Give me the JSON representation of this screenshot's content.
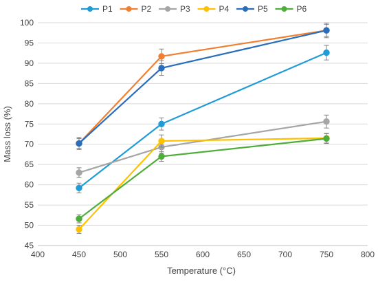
{
  "chart_data": {
    "type": "line",
    "title": "",
    "xlabel": "Temperature (°C)",
    "ylabel": "Mass loss (%)",
    "x": [
      450,
      550,
      750
    ],
    "xlim": [
      400,
      800
    ],
    "ylim": [
      45,
      100
    ],
    "xticks": [
      "400",
      "450",
      "500",
      "550",
      "600",
      "650",
      "700",
      "750",
      "800"
    ],
    "yticks": [
      "45",
      "50",
      "55",
      "60",
      "65",
      "70",
      "75",
      "80",
      "85",
      "90",
      "95",
      "100"
    ],
    "grid": "horizontal",
    "legend_position": "top",
    "error_bars": true,
    "series": [
      {
        "name": "P1",
        "color": "#1f9bd7",
        "values": [
          59.2,
          75.0,
          92.6
        ],
        "errors": [
          1.2,
          1.5,
          1.8
        ]
      },
      {
        "name": "P2",
        "color": "#f07f30",
        "values": [
          70.2,
          91.7,
          98.1
        ],
        "errors": [
          1.5,
          1.8,
          1.5
        ]
      },
      {
        "name": "P3",
        "color": "#a5a5a5",
        "values": [
          63.0,
          69.3,
          75.6
        ],
        "errors": [
          1.2,
          1.5,
          1.6
        ]
      },
      {
        "name": "P4",
        "color": "#ffc000",
        "values": [
          49.0,
          70.8,
          71.5
        ],
        "errors": [
          1.0,
          1.5,
          1.2
        ]
      },
      {
        "name": "P5",
        "color": "#2a6ebb",
        "values": [
          70.2,
          88.8,
          98.1
        ],
        "errors": [
          1.2,
          1.8,
          1.8
        ]
      },
      {
        "name": "P6",
        "color": "#4ead3b",
        "values": [
          51.6,
          67.0,
          71.4
        ],
        "errors": [
          1.0,
          1.2,
          1.2
        ]
      }
    ]
  }
}
